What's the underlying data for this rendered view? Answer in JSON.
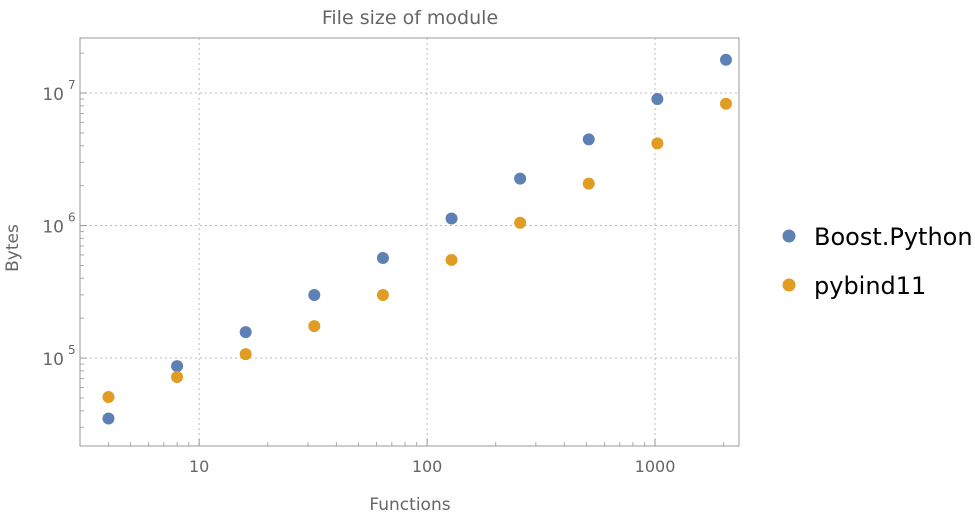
{
  "chart_data": {
    "type": "scatter",
    "title": "File size of module",
    "xlabel": "Functions",
    "ylabel": "Bytes",
    "xscale": "log",
    "yscale": "log",
    "xlim": [
      3.0,
      2336
    ],
    "ylim": [
      21700,
      26000000
    ],
    "grid": true,
    "legend_placement": "right",
    "x_ticks": [
      10,
      100,
      1000
    ],
    "x_tick_labels": [
      "10",
      "100",
      "1000"
    ],
    "y_ticks": [
      100000,
      1000000,
      10000000
    ],
    "y_tick_labels": [
      {
        "base": "10",
        "exp": "5"
      },
      {
        "base": "10",
        "exp": "6"
      },
      {
        "base": "10",
        "exp": "7"
      }
    ],
    "x": [
      4,
      8,
      16,
      32,
      64,
      128,
      256,
      512,
      1024,
      2048
    ],
    "series": [
      {
        "name": "Boost.Python",
        "color": "#5e81b5",
        "values": [
          35000,
          87000,
          157000,
          299000,
          569000,
          1130000,
          2260000,
          4470000,
          9000000,
          17800000
        ]
      },
      {
        "name": "pybind11",
        "color": "#e19c24",
        "values": [
          50800,
          72000,
          107000,
          174000,
          299000,
          550000,
          1050000,
          2070000,
          4170000,
          8300000
        ]
      }
    ]
  }
}
